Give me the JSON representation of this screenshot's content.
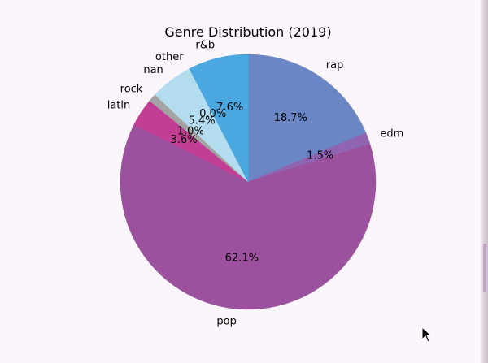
{
  "chart_data": {
    "type": "pie",
    "title": "Genre Distribution (2019)",
    "start_angle_deg": 90,
    "direction": "clockwise",
    "slices": [
      {
        "label": "rap",
        "value": 18.7,
        "pct_label": "18.7%",
        "color": "#6a86c4"
      },
      {
        "label": "edm",
        "value": 1.5,
        "pct_label": "1.5%",
        "color": "#8f64b0"
      },
      {
        "label": "pop",
        "value": 62.1,
        "pct_label": "62.1%",
        "color": "#9b519d"
      },
      {
        "label": "latin",
        "value": 3.6,
        "pct_label": "3.6%",
        "color": "#c23d94"
      },
      {
        "label": "rock",
        "value": 1.0,
        "pct_label": "1.0%",
        "color": "#a3a3a3"
      },
      {
        "label": "nan",
        "value": 5.4,
        "pct_label": "5.4%",
        "color": "#b3dcef"
      },
      {
        "label": "other",
        "value": 0.0,
        "pct_label": "0.0%",
        "color": "#9fd0ea"
      },
      {
        "label": "r&b",
        "value": 7.6,
        "pct_label": "7.6%",
        "color": "#4aa7e0"
      }
    ]
  }
}
